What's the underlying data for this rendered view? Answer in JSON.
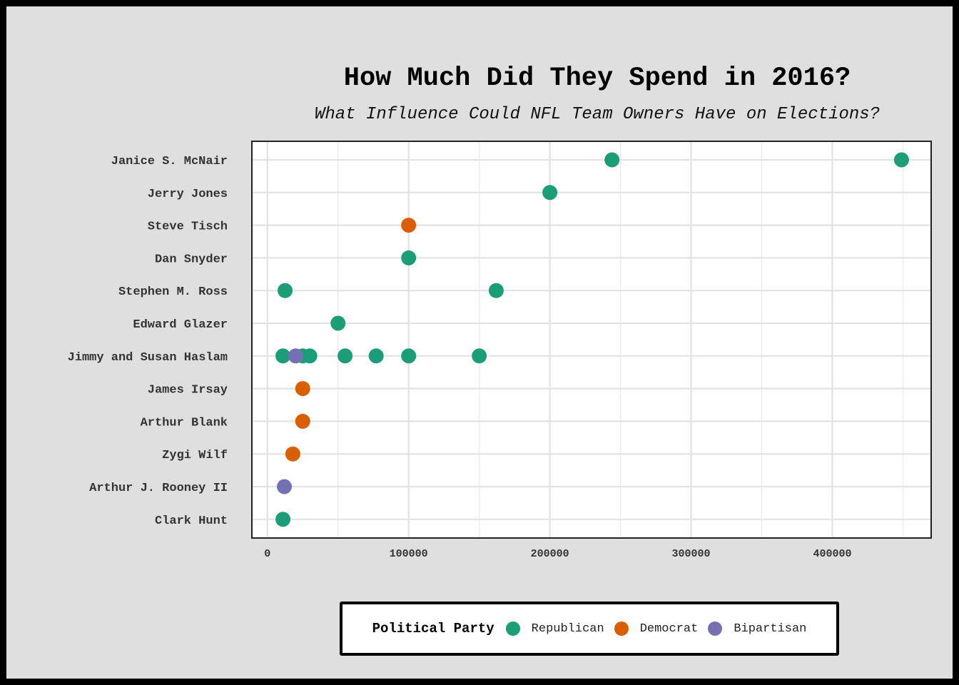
{
  "chart_data": {
    "type": "scatter",
    "title": "How Much Did They Spend in 2016?",
    "subtitle": "What Influence Could NFL Team Owners Have on Elections?",
    "xlabel": "",
    "ylabel": "",
    "xlim": [
      -11000,
      470000
    ],
    "x_ticks": [
      0,
      100000,
      200000,
      300000,
      400000
    ],
    "grid": true,
    "legend_position": "bottom",
    "categories": [
      "Janice S. McNair",
      "Jerry Jones",
      "Steve Tisch",
      "Dan Snyder",
      "Stephen M. Ross",
      "Edward Glazer",
      "Jimmy and Susan Haslam",
      "James Irsay",
      "Arthur Blank",
      "Zygi Wilf",
      "Arthur J. Rooney II",
      "Clark Hunt"
    ],
    "legend": {
      "title": "Political Party",
      "items": [
        {
          "label": "Republican",
          "color": "#1b9e77"
        },
        {
          "label": "Democrat",
          "color": "#d95f02"
        },
        {
          "label": "Bipartisan",
          "color": "#7570b3"
        }
      ]
    },
    "series": [
      {
        "name": "Republican",
        "color": "#1b9e77",
        "points": [
          {
            "y": "Janice S. McNair",
            "x": 244000
          },
          {
            "y": "Janice S. McNair",
            "x": 449000
          },
          {
            "y": "Jerry Jones",
            "x": 200000
          },
          {
            "y": "Dan Snyder",
            "x": 100000
          },
          {
            "y": "Stephen M. Ross",
            "x": 12500
          },
          {
            "y": "Stephen M. Ross",
            "x": 162000
          },
          {
            "y": "Edward Glazer",
            "x": 50000
          },
          {
            "y": "Jimmy and Susan Haslam",
            "x": 11000
          },
          {
            "y": "Jimmy and Susan Haslam",
            "x": 25000
          },
          {
            "y": "Jimmy and Susan Haslam",
            "x": 30000
          },
          {
            "y": "Jimmy and Susan Haslam",
            "x": 55000
          },
          {
            "y": "Jimmy and Susan Haslam",
            "x": 77000
          },
          {
            "y": "Jimmy and Susan Haslam",
            "x": 100000
          },
          {
            "y": "Jimmy and Susan Haslam",
            "x": 150000
          },
          {
            "y": "Clark Hunt",
            "x": 11000
          }
        ]
      },
      {
        "name": "Democrat",
        "color": "#d95f02",
        "points": [
          {
            "y": "Steve Tisch",
            "x": 100000
          },
          {
            "y": "James Irsay",
            "x": 25000
          },
          {
            "y": "Arthur Blank",
            "x": 25000
          },
          {
            "y": "Zygi Wilf",
            "x": 18000
          }
        ]
      },
      {
        "name": "Bipartisan",
        "color": "#7570b3",
        "points": [
          {
            "y": "Jimmy and Susan Haslam",
            "x": 20000
          },
          {
            "y": "Arthur J. Rooney II",
            "x": 12000
          }
        ]
      }
    ]
  }
}
